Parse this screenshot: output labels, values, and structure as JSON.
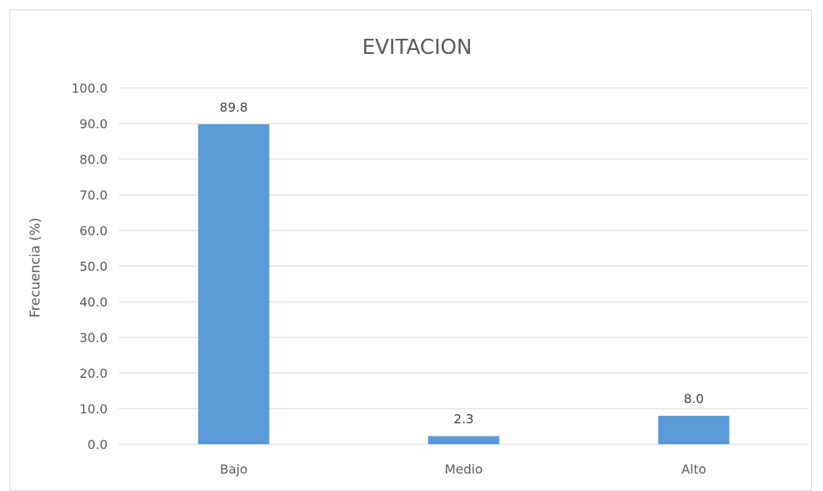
{
  "chart_data": {
    "type": "bar",
    "title": "EVITACION",
    "xlabel": "",
    "ylabel": "Frecuencia (%)",
    "categories": [
      "Bajo",
      "Medio",
      "Alto"
    ],
    "values": [
      89.8,
      2.3,
      8.0
    ],
    "value_labels": [
      "89.8",
      "2.3",
      "8.0"
    ],
    "ylim": [
      0,
      100
    ],
    "ytick_step": 10,
    "ytick_labels": [
      "0.0",
      "10.0",
      "20.0",
      "30.0",
      "40.0",
      "50.0",
      "60.0",
      "70.0",
      "80.0",
      "90.0",
      "100.0"
    ],
    "grid": true,
    "legend": "none",
    "colors": {
      "bar": "#5b9bd5",
      "grid": "#d9d9d9",
      "text": "#595959"
    }
  }
}
